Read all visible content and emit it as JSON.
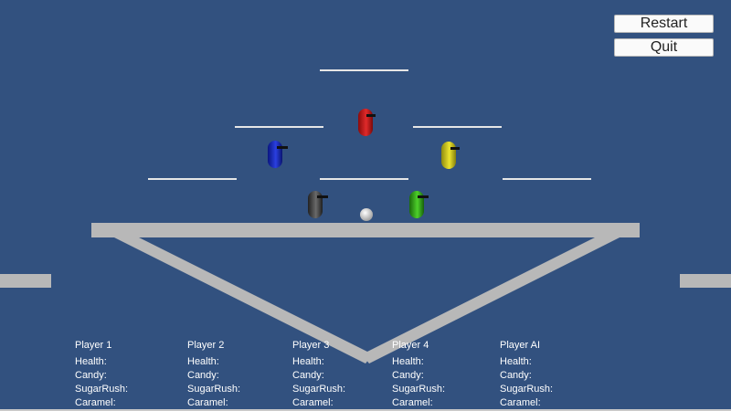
{
  "colors": {
    "background": "#32517f",
    "platform": "#b8b8b8",
    "ledge": "#e6e6e6",
    "ball": "#f2f2f2",
    "player_red": "#d41a1a",
    "player_blue": "#1a2fd0",
    "player_yellow": "#d8d01e",
    "player_gray": "#4a4a4a",
    "player_green": "#39b51e"
  },
  "menu": {
    "restart_label": "Restart",
    "quit_label": "Quit"
  },
  "panels": [
    {
      "name": "Player 1",
      "health": "Health:",
      "candy": "Candy:",
      "sugar": "SugarRush:",
      "caramel": "Caramel:"
    },
    {
      "name": "Player 2",
      "health": "Health:",
      "candy": "Candy:",
      "sugar": "SugarRush:",
      "caramel": "Caramel:"
    },
    {
      "name": "Player 3",
      "health": "Health:",
      "candy": "Candy:",
      "sugar": "SugarRush:",
      "caramel": "Caramel:"
    },
    {
      "name": "Player 4",
      "health": "Health:",
      "candy": "Candy:",
      "sugar": "SugarRush:",
      "caramel": "Caramel:"
    },
    {
      "name": "Player AI",
      "health": "Health:",
      "candy": "Candy:",
      "sugar": "SugarRush:",
      "caramel": "Caramel:"
    }
  ]
}
